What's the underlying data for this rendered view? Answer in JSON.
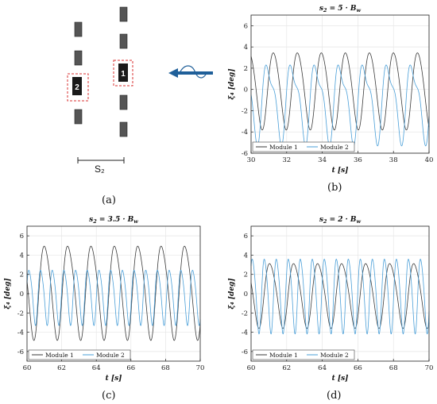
{
  "panels": {
    "a": {
      "label": "(a)",
      "spacing_label": "S₂",
      "module_labels": [
        "1",
        "2"
      ]
    },
    "b": {
      "label": "(b)"
    },
    "c": {
      "label": "(c)"
    },
    "d": {
      "label": "(d)"
    }
  },
  "colors": {
    "module1": "#3a3a3a",
    "module2": "#4a9fd8",
    "wave_arrow": "#1f5f99",
    "box_dash": "#d93030",
    "box_fill": "#444444"
  },
  "chart_data": [
    {
      "id": "b",
      "type": "line",
      "title": "s₂ = 5 · Bᵤ",
      "title_parts": {
        "lhs": "s",
        "sub": "2",
        "eq": " = 5 · B",
        "wsub": "w"
      },
      "xlabel": "t [s]",
      "ylabel": "ξ₄ [deg]",
      "xlim": [
        30,
        40
      ],
      "ylim": [
        -6,
        7
      ],
      "xticks": [
        30,
        32,
        34,
        36,
        38,
        40
      ],
      "yticks": [
        -6,
        -4,
        -2,
        0,
        2,
        4,
        6
      ],
      "legend_position": "bottom-left",
      "series": [
        {
          "name": "Module 1",
          "color": "#3a3a3a",
          "period": 1.35,
          "amplitude": 3.6,
          "offset": 0.0,
          "phase": 0.5,
          "harm_amp": 0.3
        },
        {
          "name": "Module 2",
          "color": "#4a9fd8",
          "period": 1.35,
          "amplitude": 3.3,
          "offset": -1.0,
          "phase": 1.9,
          "harm_amp": 1.2
        }
      ]
    },
    {
      "id": "c",
      "type": "line",
      "title": "s₂ = 3.5 · Bᵤ",
      "title_parts": {
        "lhs": "s",
        "sub": "2",
        "eq": " = 3.5 · B",
        "wsub": "w"
      },
      "xlabel": "t [s]",
      "ylabel": "ξ₄ [deg]",
      "xlim": [
        60,
        70
      ],
      "ylim": [
        -7,
        7
      ],
      "xticks": [
        60,
        62,
        64,
        66,
        68,
        70
      ],
      "yticks": [
        -6,
        -4,
        -2,
        0,
        2,
        4,
        6
      ],
      "legend_position": "bottom-left",
      "series": [
        {
          "name": "Module 1",
          "color": "#3a3a3a",
          "period": 1.35,
          "amplitude": 4.8,
          "offset": 0.4,
          "phase": 0.2,
          "harm_amp": 0.6
        },
        {
          "name": "Module 2",
          "color": "#4a9fd8",
          "period": 0.675,
          "amplitude": 2.8,
          "offset": -0.2,
          "phase": 1.0,
          "harm_amp": 0.4
        }
      ]
    },
    {
      "id": "d",
      "type": "line",
      "title": "s₂ = 2 · Bᵤ",
      "title_parts": {
        "lhs": "s",
        "sub": "2",
        "eq": " = 2 · B",
        "wsub": "w"
      },
      "xlabel": "t [s]",
      "ylabel": "ξ₄ [deg]",
      "xlim": [
        60,
        70
      ],
      "ylim": [
        -7,
        7
      ],
      "xticks": [
        60,
        62,
        64,
        66,
        68,
        70
      ],
      "yticks": [
        -6,
        -4,
        -2,
        0,
        2,
        4,
        6
      ],
      "legend_position": "bottom-left",
      "series": [
        {
          "name": "Module 1",
          "color": "#3a3a3a",
          "period": 1.35,
          "amplitude": 3.3,
          "offset": 0.0,
          "phase": 0.0,
          "harm_amp": 0.4
        },
        {
          "name": "Module 2",
          "color": "#4a9fd8",
          "period": 0.675,
          "amplitude": 3.8,
          "offset": 0.0,
          "phase": 1.4,
          "harm_amp": 0.5
        }
      ]
    }
  ]
}
